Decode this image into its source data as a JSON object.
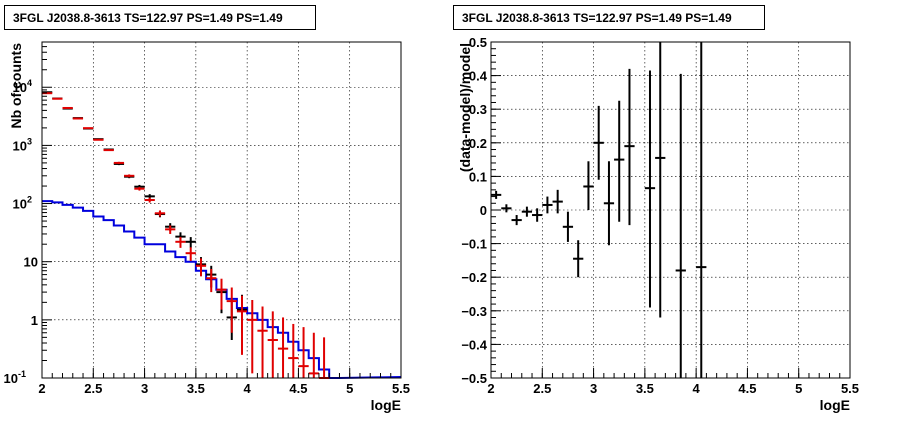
{
  "chart_data": [
    {
      "type": "histogram",
      "title": "3FGL J2038.8-3613 TS=122.97 PS=1.49 PS=1.49",
      "xlabel": "logE",
      "ylabel": "Nb of counts",
      "xlim": [
        2,
        5.5
      ],
      "ylim": [
        0.1,
        60000
      ],
      "log_y": true,
      "grid": true,
      "x_ticks": [
        "2",
        "2.5",
        "3",
        "3.5",
        "4",
        "4.5",
        "5",
        "5.5"
      ],
      "y_ticks": [
        {
          "value": 0.1,
          "base": "10",
          "exp": "-1"
        },
        {
          "value": 1,
          "base": "1",
          "exp": ""
        },
        {
          "value": 10,
          "base": "10",
          "exp": ""
        },
        {
          "value": 100,
          "base": "10",
          "exp": "2"
        },
        {
          "value": 1000,
          "base": "10",
          "exp": "3"
        },
        {
          "value": 10000,
          "base": "10",
          "exp": "4"
        }
      ],
      "bin_width": 0.1,
      "series": [
        {
          "color": "#000000",
          "style": "errorbar",
          "points": [
            {
              "x": 2.05,
              "y": 8200,
              "lo": 8110,
              "hi": 8290
            },
            {
              "x": 2.15,
              "y": 6400,
              "lo": 6320,
              "hi": 6480
            },
            {
              "x": 2.25,
              "y": 4300,
              "lo": 4235,
              "hi": 4365
            },
            {
              "x": 2.35,
              "y": 2950,
              "lo": 2895,
              "hi": 3005
            },
            {
              "x": 2.45,
              "y": 1950,
              "lo": 1905,
              "hi": 1995
            },
            {
              "x": 2.55,
              "y": 1280,
              "lo": 1245,
              "hi": 1315
            },
            {
              "x": 2.65,
              "y": 850,
              "lo": 820,
              "hi": 880
            },
            {
              "x": 2.75,
              "y": 480,
              "lo": 458,
              "hi": 502
            },
            {
              "x": 2.85,
              "y": 290,
              "lo": 273,
              "hi": 307
            },
            {
              "x": 2.95,
              "y": 195,
              "lo": 181,
              "hi": 209
            },
            {
              "x": 3.05,
              "y": 133,
              "lo": 121,
              "hi": 145
            },
            {
              "x": 3.15,
              "y": 66,
              "lo": 58,
              "hi": 74
            },
            {
              "x": 3.25,
              "y": 40,
              "lo": 34,
              "hi": 46
            },
            {
              "x": 3.35,
              "y": 27,
              "lo": 22,
              "hi": 32
            },
            {
              "x": 3.45,
              "y": 22,
              "lo": 17.5,
              "hi": 26.5
            },
            {
              "x": 3.55,
              "y": 9,
              "lo": 6,
              "hi": 12
            },
            {
              "x": 3.65,
              "y": 6,
              "lo": 3.6,
              "hi": 8.5
            },
            {
              "x": 3.75,
              "y": 3,
              "lo": 1.3,
              "hi": 4.7
            },
            {
              "x": 3.85,
              "y": 1.1,
              "lo": 0.45,
              "hi": 2.2
            },
            {
              "x": 3.95,
              "y": 1.5,
              "lo": 0.6,
              "hi": 2.7
            }
          ]
        },
        {
          "color": "#e00000",
          "style": "errorbar",
          "points": [
            {
              "x": 2.05,
              "y": 7900,
              "lo": 7810,
              "hi": 7990
            },
            {
              "x": 2.15,
              "y": 6350,
              "lo": 6270,
              "hi": 6430
            },
            {
              "x": 2.25,
              "y": 4400,
              "lo": 4333,
              "hi": 4467
            },
            {
              "x": 2.35,
              "y": 2900,
              "lo": 2846,
              "hi": 2954
            },
            {
              "x": 2.45,
              "y": 1980,
              "lo": 1935,
              "hi": 2025
            },
            {
              "x": 2.55,
              "y": 1250,
              "lo": 1215,
              "hi": 1285
            },
            {
              "x": 2.65,
              "y": 830,
              "lo": 801,
              "hi": 859
            },
            {
              "x": 2.75,
              "y": 500,
              "lo": 478,
              "hi": 522
            },
            {
              "x": 2.85,
              "y": 300,
              "lo": 283,
              "hi": 317
            },
            {
              "x": 2.95,
              "y": 180,
              "lo": 167,
              "hi": 193
            },
            {
              "x": 3.05,
              "y": 115,
              "lo": 104,
              "hi": 126
            },
            {
              "x": 3.15,
              "y": 68,
              "lo": 60,
              "hi": 76
            },
            {
              "x": 3.25,
              "y": 36,
              "lo": 30,
              "hi": 42
            },
            {
              "x": 3.35,
              "y": 22,
              "lo": 17.3,
              "hi": 26.7
            },
            {
              "x": 3.45,
              "y": 14,
              "lo": 10.3,
              "hi": 17.7
            },
            {
              "x": 3.55,
              "y": 8.5,
              "lo": 5.6,
              "hi": 11.4
            },
            {
              "x": 3.65,
              "y": 5.2,
              "lo": 3,
              "hi": 7.5
            },
            {
              "x": 3.75,
              "y": 3.3,
              "lo": 1.5,
              "hi": 5.1
            },
            {
              "x": 3.85,
              "y": 2.1,
              "lo": 0.6,
              "hi": 3.6
            },
            {
              "x": 3.95,
              "y": 1.4,
              "lo": 0.25,
              "hi": 2.6
            },
            {
              "x": 4.05,
              "y": 1.0,
              "lo": 0.12,
              "hi": 2.2
            },
            {
              "x": 4.15,
              "y": 0.65,
              "lo": 0.1,
              "hi": 1.7
            },
            {
              "x": 4.25,
              "y": 0.45,
              "lo": 0.1,
              "hi": 1.4
            },
            {
              "x": 4.35,
              "y": 0.32,
              "lo": 0.1,
              "hi": 1.1
            },
            {
              "x": 4.45,
              "y": 0.22,
              "lo": 0.1,
              "hi": 0.85
            },
            {
              "x": 4.55,
              "y": 0.16,
              "lo": 0.1,
              "hi": 0.75
            },
            {
              "x": 4.65,
              "y": 0.12,
              "lo": 0.1,
              "hi": 0.6
            },
            {
              "x": 4.75,
              "y": 0.1,
              "lo": 0.1,
              "hi": 0.5
            }
          ]
        },
        {
          "color": "#0000dd",
          "style": "step",
          "bins": [
            {
              "x": 2.0,
              "y": 110
            },
            {
              "x": 2.1,
              "y": 105
            },
            {
              "x": 2.2,
              "y": 95
            },
            {
              "x": 2.3,
              "y": 85
            },
            {
              "x": 2.4,
              "y": 75
            },
            {
              "x": 2.5,
              "y": 60
            },
            {
              "x": 2.6,
              "y": 52
            },
            {
              "x": 2.7,
              "y": 42
            },
            {
              "x": 2.8,
              "y": 33
            },
            {
              "x": 2.9,
              "y": 26
            },
            {
              "x": 3.0,
              "y": 20
            },
            {
              "x": 3.1,
              "y": 20
            },
            {
              "x": 3.2,
              "y": 15
            },
            {
              "x": 3.3,
              "y": 12
            },
            {
              "x": 3.4,
              "y": 10
            },
            {
              "x": 3.5,
              "y": 7
            },
            {
              "x": 3.6,
              "y": 5
            },
            {
              "x": 3.7,
              "y": 3.3
            },
            {
              "x": 3.8,
              "y": 2.3
            },
            {
              "x": 3.9,
              "y": 1.6
            },
            {
              "x": 4.0,
              "y": 1.3
            },
            {
              "x": 4.1,
              "y": 1.0
            },
            {
              "x": 4.2,
              "y": 0.75
            },
            {
              "x": 4.3,
              "y": 0.6
            },
            {
              "x": 4.4,
              "y": 0.42
            },
            {
              "x": 4.5,
              "y": 0.3
            },
            {
              "x": 4.6,
              "y": 0.22
            },
            {
              "x": 4.7,
              "y": 0.14
            },
            {
              "x": 4.8,
              "y": 0.1
            }
          ]
        }
      ]
    },
    {
      "type": "errorbar",
      "title": "3FGL J2038.8-3613 TS=122.97 PS=1.49 PS=1.49",
      "xlabel": "logE",
      "ylabel": "(data-model)/model",
      "xlim": [
        2,
        5.5
      ],
      "ylim": [
        -0.5,
        0.5
      ],
      "grid": true,
      "x_ticks": [
        "2",
        "2.5",
        "3",
        "3.5",
        "4",
        "4.5",
        "5",
        "5.5"
      ],
      "y_ticks": [
        "-0.5",
        "-0.4",
        "-0.3",
        "-0.2",
        "-0.1",
        "0",
        "0.1",
        "0.2",
        "0.3",
        "0.4",
        "0.5"
      ],
      "bin_width": 0.1,
      "series": [
        {
          "color": "#000000",
          "points": [
            {
              "x": 2.05,
              "y": 0.045,
              "lo": 0.033,
              "hi": 0.057
            },
            {
              "x": 2.15,
              "y": 0.005,
              "lo": -0.007,
              "hi": 0.017
            },
            {
              "x": 2.25,
              "y": -0.03,
              "lo": -0.045,
              "hi": -0.015
            },
            {
              "x": 2.35,
              "y": -0.005,
              "lo": -0.02,
              "hi": 0.01
            },
            {
              "x": 2.45,
              "y": -0.015,
              "lo": -0.035,
              "hi": 0.005
            },
            {
              "x": 2.55,
              "y": 0.015,
              "lo": -0.01,
              "hi": 0.04
            },
            {
              "x": 2.65,
              "y": 0.025,
              "lo": -0.01,
              "hi": 0.06
            },
            {
              "x": 2.75,
              "y": -0.05,
              "lo": -0.095,
              "hi": -0.005
            },
            {
              "x": 2.85,
              "y": -0.145,
              "lo": -0.2,
              "hi": -0.09
            },
            {
              "x": 2.95,
              "y": 0.07,
              "lo": 0.0,
              "hi": 0.145
            },
            {
              "x": 3.05,
              "y": 0.2,
              "lo": 0.09,
              "hi": 0.31
            },
            {
              "x": 3.15,
              "y": 0.02,
              "lo": -0.105,
              "hi": 0.145
            },
            {
              "x": 3.25,
              "y": 0.15,
              "lo": -0.035,
              "hi": 0.325
            },
            {
              "x": 3.35,
              "y": 0.19,
              "lo": -0.045,
              "hi": 0.42
            },
            {
              "x": 3.55,
              "y": 0.065,
              "lo": -0.29,
              "hi": 0.415
            },
            {
              "x": 3.65,
              "y": 0.155,
              "lo": -0.32,
              "hi": 0.5
            },
            {
              "x": 3.85,
              "y": -0.18,
              "lo": -0.5,
              "hi": 0.405
            },
            {
              "x": 4.05,
              "y": -0.17,
              "lo": -0.5,
              "hi": 0.5
            }
          ]
        }
      ]
    }
  ]
}
